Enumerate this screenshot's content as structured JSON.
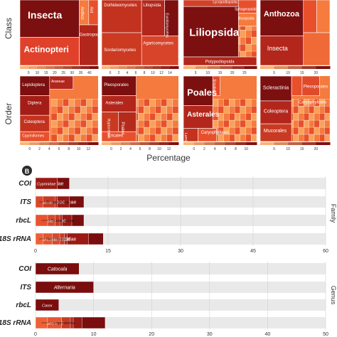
{
  "panel_a": {
    "axis_title": "Percentage",
    "row_titles": [
      "Class",
      "Order"
    ],
    "treemaps": [
      {
        "row": 0,
        "col": 0,
        "labels": [
          {
            "text": "Insecta",
            "size": 14
          },
          {
            "text": "Actinopteri",
            "size": 12
          },
          {
            "text": "Anthoz",
            "size": 6
          },
          {
            "text": "Ant",
            "size": 6
          },
          {
            "text": "Gastropoda",
            "size": 6
          }
        ],
        "ticks": [
          "5",
          "10",
          "15",
          "20",
          "25",
          "30",
          "35",
          "40"
        ]
      },
      {
        "row": 0,
        "col": 1,
        "labels": [
          {
            "text": "Dothideomycetes",
            "size": 6
          },
          {
            "text": "Liliopsida",
            "size": 6
          },
          {
            "text": "Eurotiomycetes",
            "size": 5
          },
          {
            "text": "Agaricomycetes",
            "size": 6
          },
          {
            "text": "Sordariomycetes",
            "size": 6
          }
        ],
        "ticks": [
          "0",
          "2",
          "4",
          "6",
          "8",
          "10",
          "12",
          "14"
        ]
      },
      {
        "row": 0,
        "col": 2,
        "labels": [
          {
            "text": "Lycopodiopsida",
            "size": 5
          },
          {
            "text": "Sphagnopsida",
            "size": 5
          },
          {
            "text": "Bryopsida",
            "size": 5
          },
          {
            "text": "Liliopsida",
            "size": 15
          },
          {
            "text": "Polypodiopsida",
            "size": 6
          }
        ],
        "ticks": [
          "5",
          "10",
          "15",
          "20",
          "25"
        ]
      },
      {
        "row": 0,
        "col": 3,
        "labels": [
          {
            "text": "Anthozoa",
            "size": 11
          },
          {
            "text": "Insecta",
            "size": 9
          }
        ],
        "ticks": [
          "5",
          "10",
          "15",
          "20"
        ]
      },
      {
        "row": 1,
        "col": 0,
        "labels": [
          {
            "text": "Lepidoptera",
            "size": 6
          },
          {
            "text": "Araneae",
            "size": 5
          },
          {
            "text": "Diptera",
            "size": 6
          },
          {
            "text": "Coleoptera",
            "size": 6
          },
          {
            "text": "Cypriniformes",
            "size": 5
          }
        ],
        "ticks": [
          "0",
          "2",
          "4",
          "6",
          "8",
          "10",
          "12"
        ]
      },
      {
        "row": 1,
        "col": 1,
        "labels": [
          {
            "text": "Pleosporales",
            "size": 6
          },
          {
            "text": "Asterales",
            "size": 6
          },
          {
            "text": "Hypocreales",
            "size": 5
          },
          {
            "text": "Poales",
            "size": 6
          },
          {
            "text": "Ericales",
            "size": 6
          }
        ],
        "ticks": [
          "0",
          "2",
          "4",
          "6",
          "8",
          "10",
          "12"
        ]
      },
      {
        "row": 1,
        "col": 2,
        "labels": [
          {
            "text": "Poales",
            "size": 13
          },
          {
            "text": "Ericales",
            "size": 5
          },
          {
            "text": "Asterales",
            "size": 10
          },
          {
            "text": "Lamiales",
            "size": 5
          },
          {
            "text": "Caryophyllales",
            "size": 6
          }
        ],
        "ticks": [
          "0",
          "2",
          "4",
          "6",
          "8",
          "10"
        ]
      },
      {
        "row": 1,
        "col": 3,
        "labels": [
          {
            "text": "Scleractinia",
            "size": 7
          },
          {
            "text": "Pleosporales",
            "size": 6
          },
          {
            "text": "Caryophyllales",
            "size": 6
          },
          {
            "text": "Coleoptera",
            "size": 7
          },
          {
            "text": "Mucorales",
            "size": 7
          }
        ],
        "ticks": [
          "5",
          "10",
          "15",
          "20"
        ]
      }
    ]
  },
  "panel_b": {
    "badge": "B",
    "markers": [
      "COI",
      "ITS",
      "rbcL",
      "18S rRNA"
    ],
    "facet_family": "Family",
    "facet_genus": "Genus",
    "palette": [
      "#7a0d0d",
      "#9a1a14",
      "#b42a1c",
      "#c93a22",
      "#d9482a",
      "#e8542f",
      "#f06036",
      "#f36f3d"
    ],
    "track_color": "#e9e9e9"
  },
  "chart_data": [
    {
      "type": "bar",
      "orientation": "horizontal",
      "stacked": true,
      "categories": [
        "COI",
        "ITS",
        "rbcL",
        "18S rRNA"
      ],
      "xlim": [
        0,
        60
      ],
      "xticks": [
        0,
        15,
        30,
        45,
        60
      ],
      "grid": true,
      "facet": "Family",
      "segments": [
        [
          {
            "label": "Noctuidae",
            "value": 7
          },
          {
            "label": "Cyprinidae",
            "value": 4.5
          }
        ],
        [
          {
            "label": "Pleosporaceae",
            "value": 10
          },
          {
            "label": "Asteraceae",
            "value": 7
          },
          {
            "label": "Fabaceae",
            "value": 4.5
          },
          {
            "label": "Poaceae",
            "value": 4
          },
          {
            "label": "Brassicaceae",
            "value": 1.5
          }
        ],
        [
          {
            "label": "Poaceae",
            "value": 10
          },
          {
            "label": "Asteraceae",
            "value": 7.5
          },
          {
            "label": "Cyperaceae",
            "value": 5.5
          },
          {
            "label": "Fabaceae",
            "value": 5
          },
          {
            "label": "Rosaceae",
            "value": 4
          },
          {
            "label": "Brassicaceae",
            "value": 2.5
          }
        ],
        [
          {
            "label": "Poritidae",
            "value": 14
          },
          {
            "label": "Hydraenidae",
            "value": 11
          },
          {
            "label": "Plumbaginaceae",
            "value": 6.5
          },
          {
            "label": "Rhizopodaceae",
            "value": 6
          },
          {
            "label": "Stemonitidae",
            "value": 5
          },
          {
            "label": "Pleosporaceae",
            "value": 3.5
          },
          {
            "label": "Nectriaceae",
            "value": 1.5
          }
        ]
      ]
    },
    {
      "type": "bar",
      "orientation": "horizontal",
      "stacked": true,
      "categories": [
        "COI",
        "ITS",
        "rbcL",
        "18S rRNA"
      ],
      "xlim": [
        0,
        50
      ],
      "xticks": [
        0,
        10,
        20,
        30,
        40,
        50
      ],
      "grid": true,
      "facet": "Genus",
      "segments": [
        [
          {
            "label": "Catocala",
            "value": 7.5
          }
        ],
        [
          {
            "label": "Alternaria",
            "value": 10
          }
        ],
        [
          {
            "label": "Carex",
            "value": 4
          }
        ],
        [
          {
            "label": "Goniopora",
            "value": 12
          },
          {
            "label": "Ochthebius",
            "value": 8
          },
          {
            "label": "Acantholimon",
            "value": 6.5
          },
          {
            "label": "Rhizopus",
            "value": 6
          },
          {
            "label": "Alternaria",
            "value": 4
          },
          {
            "label": "Fusarium",
            "value": 4.5
          },
          {
            "label": "Lamproderma",
            "value": 2
          }
        ]
      ]
    }
  ]
}
